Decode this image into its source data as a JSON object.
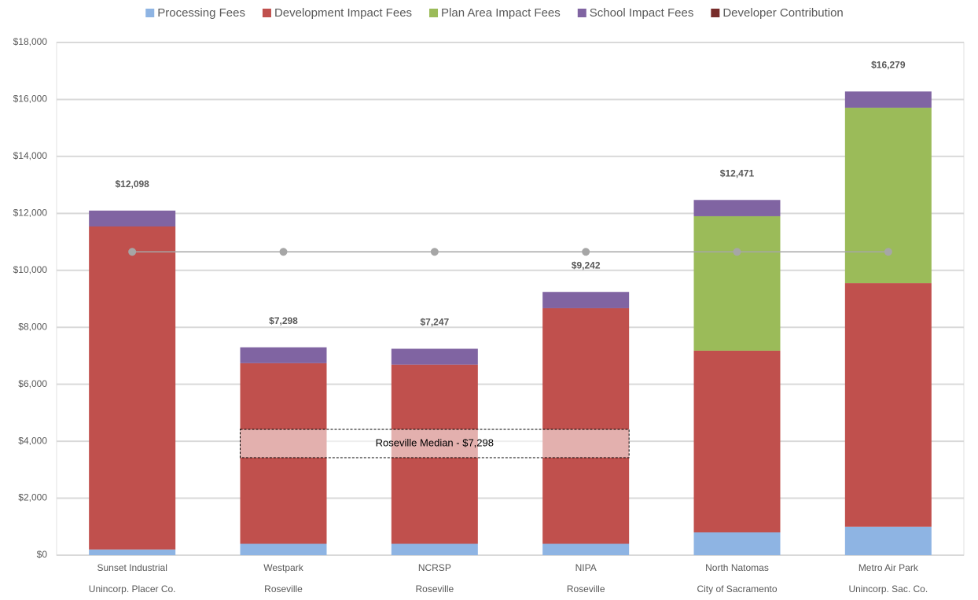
{
  "chart_data": {
    "type": "stacked_bar",
    "categories": [
      "Sunset Industrial",
      "Westpark",
      "NCRSP",
      "NIPA",
      "North Natomas",
      "Metro Air Park"
    ],
    "subcategories": [
      "Unincorp. Placer Co.",
      "Roseville",
      "Roseville",
      "Roseville",
      "City of Sacramento",
      "Unincorp. Sac. Co."
    ],
    "series": [
      {
        "name": "Processing Fees",
        "color": "#8eb4e3",
        "values": [
          200,
          400,
          400,
          400,
          800,
          1000
        ]
      },
      {
        "name": "Development Impact Fees",
        "color": "#c0504d",
        "values": [
          11340,
          6340,
          6290,
          8270,
          6380,
          8550
        ]
      },
      {
        "name": "Plan Area Impact Fees",
        "color": "#9bbb59",
        "values": [
          0,
          0,
          0,
          0,
          4720,
          6160
        ]
      },
      {
        "name": "School Impact Fees",
        "color": "#8064a2",
        "values": [
          558,
          558,
          557,
          572,
          571,
          569
        ]
      },
      {
        "name": "Developer Contribution",
        "color": "#772c2a",
        "values": [
          0,
          0,
          0,
          0,
          0,
          0
        ]
      }
    ],
    "totals": [
      12098,
      7298,
      7247,
      9242,
      12471,
      16279
    ],
    "total_labels": [
      "$12,098",
      "$7,298",
      "$7,247",
      "$9,242",
      "$12,471",
      "$16,279"
    ],
    "reference_line": {
      "color": "#a6a6a6",
      "values": [
        10650,
        10650,
        10650,
        10650,
        10650,
        10650
      ]
    },
    "annotation": "Roseville Median - $7,298",
    "ylim": [
      0,
      18000
    ],
    "yticks": [
      {
        "value": 0,
        "label": "$0"
      },
      {
        "value": 2000,
        "label": "$2,000"
      },
      {
        "value": 4000,
        "label": "$4,000"
      },
      {
        "value": 6000,
        "label": "$6,000"
      },
      {
        "value": 8000,
        "label": "$8,000"
      },
      {
        "value": 10000,
        "label": "$10,000"
      },
      {
        "value": 12000,
        "label": "$12,000"
      },
      {
        "value": 14000,
        "label": "$14,000"
      },
      {
        "value": 16000,
        "label": "$16,000"
      },
      {
        "value": 18000,
        "label": "$18,000"
      }
    ],
    "grid": true,
    "legend": "top"
  }
}
